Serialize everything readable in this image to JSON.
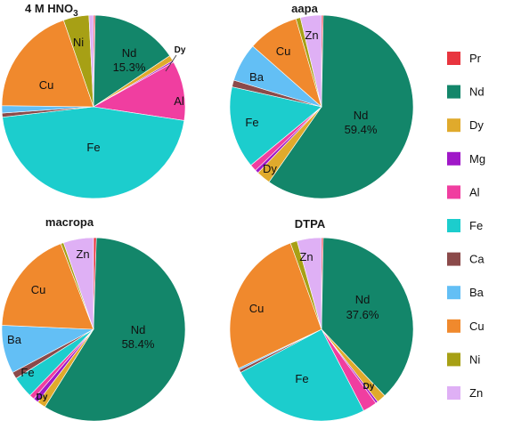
{
  "chart_data": [
    {
      "type": "pie",
      "title": "4 M HNO3",
      "title_main": "4 M HNO",
      "title_sub": "3",
      "slices": [
        {
          "name": "Pr",
          "value": 0.3
        },
        {
          "name": "Nd",
          "value": 15.3
        },
        {
          "name": "Dy",
          "value": 1.0
        },
        {
          "name": "Mg",
          "value": 0.3
        },
        {
          "name": "Al",
          "value": 10.5
        },
        {
          "name": "Fe",
          "value": 45.8
        },
        {
          "name": "Ca",
          "value": 0.7
        },
        {
          "name": "Ba",
          "value": 1.3
        },
        {
          "name": "Cu",
          "value": 19.5
        },
        {
          "name": "Ni",
          "value": 4.5
        },
        {
          "name": "Zn",
          "value": 0.8
        }
      ]
    },
    {
      "type": "pie",
      "title": "aapa",
      "slices": [
        {
          "name": "Pr",
          "value": 0.3
        },
        {
          "name": "Nd",
          "value": 59.4
        },
        {
          "name": "Dy",
          "value": 2.5
        },
        {
          "name": "Mg",
          "value": 0.6
        },
        {
          "name": "Al",
          "value": 1.2
        },
        {
          "name": "Fe",
          "value": 14.5
        },
        {
          "name": "Ca",
          "value": 1.2
        },
        {
          "name": "Ba",
          "value": 6.8
        },
        {
          "name": "Cu",
          "value": 9.0
        },
        {
          "name": "Ni",
          "value": 0.8
        },
        {
          "name": "Zn",
          "value": 3.7
        }
      ]
    },
    {
      "type": "pie",
      "title": "macropa",
      "slices": [
        {
          "name": "Pr",
          "value": 0.5
        },
        {
          "name": "Nd",
          "value": 58.4
        },
        {
          "name": "Dy",
          "value": 1.5
        },
        {
          "name": "Mg",
          "value": 0.9
        },
        {
          "name": "Al",
          "value": 0.9
        },
        {
          "name": "Fe",
          "value": 3.8
        },
        {
          "name": "Ca",
          "value": 1.2
        },
        {
          "name": "Ba",
          "value": 8.5
        },
        {
          "name": "Cu",
          "value": 18.5
        },
        {
          "name": "Ni",
          "value": 0.5
        },
        {
          "name": "Zn",
          "value": 5.3
        }
      ]
    },
    {
      "type": "pie",
      "title": "DTPA",
      "slices": [
        {
          "name": "Pr",
          "value": 0.3
        },
        {
          "name": "Nd",
          "value": 37.6
        },
        {
          "name": "Dy",
          "value": 1.6
        },
        {
          "name": "Mg",
          "value": 0.4
        },
        {
          "name": "Al",
          "value": 2.5
        },
        {
          "name": "Fe",
          "value": 24.8
        },
        {
          "name": "Ca",
          "value": 0.5
        },
        {
          "name": "Ba",
          "value": 0.3
        },
        {
          "name": "Cu",
          "value": 26.5
        },
        {
          "name": "Ni",
          "value": 1.2
        },
        {
          "name": "Zn",
          "value": 4.3
        }
      ]
    }
  ],
  "labels": [
    [
      {
        "name": "Nd",
        "value_text": "15.3%"
      },
      {
        "name": "Dy"
      },
      {
        "name": "Al"
      },
      {
        "name": "Fe"
      },
      {
        "name": "Cu"
      },
      {
        "name": "Ni"
      }
    ],
    [
      {
        "name": "Nd",
        "value_text": "59.4%"
      },
      {
        "name": "Dy"
      },
      {
        "name": "Fe"
      },
      {
        "name": "Ba"
      },
      {
        "name": "Cu"
      },
      {
        "name": "Zn"
      }
    ],
    [
      {
        "name": "Nd",
        "value_text": "58.4%"
      },
      {
        "name": "Dy"
      },
      {
        "name": "Fe"
      },
      {
        "name": "Ba"
      },
      {
        "name": "Cu"
      },
      {
        "name": "Zn"
      }
    ],
    [
      {
        "name": "Nd",
        "value_text": "37.6%"
      },
      {
        "name": "Dy"
      },
      {
        "name": "Fe"
      },
      {
        "name": "Cu"
      },
      {
        "name": "Zn"
      }
    ]
  ],
  "legend": {
    "placement": "right",
    "entries": [
      {
        "name": "Pr",
        "color": "#e8353f"
      },
      {
        "name": "Nd",
        "color": "#13866a"
      },
      {
        "name": "Dy",
        "color": "#e0aa2c"
      },
      {
        "name": "Mg",
        "color": "#a018c8"
      },
      {
        "name": "Al",
        "color": "#f03ea0"
      },
      {
        "name": "Fe",
        "color": "#1ccdcd"
      },
      {
        "name": "Ca",
        "color": "#8b4a4a"
      },
      {
        "name": "Ba",
        "color": "#63bff5"
      },
      {
        "name": "Cu",
        "color": "#f0892d"
      },
      {
        "name": "Ni",
        "color": "#a7a015"
      },
      {
        "name": "Zn",
        "color": "#dfb0f5"
      }
    ]
  }
}
